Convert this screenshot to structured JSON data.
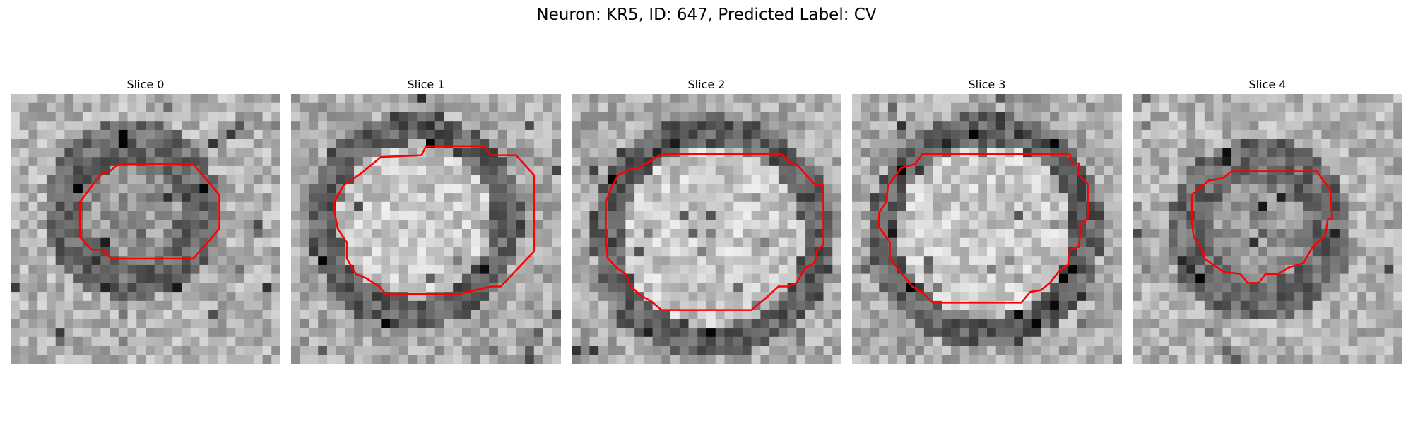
{
  "title": "Neuron: KR5, ID: 647, Predicted Label: CV",
  "colors": {
    "contour": "#ff0000"
  },
  "panels": [
    {
      "label": "Slice 0",
      "region": "small-dark-ring"
    },
    {
      "label": "Slice 1",
      "region": "large-bright-circle"
    },
    {
      "label": "Slice 2",
      "region": "large-bright-circle"
    },
    {
      "label": "Slice 3",
      "region": "large-bright-circle"
    },
    {
      "label": "Slice 4",
      "region": "small-dark-ring"
    }
  ]
}
